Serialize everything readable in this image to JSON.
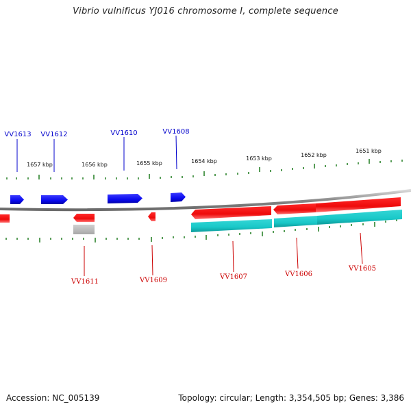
{
  "title": "Vibrio vulnificus YJ016 chromosome I, complete sequence",
  "footer": {
    "accession": "Accession: NC_005139",
    "stats": "Topology: circular; Length: 3,354,505 bp; Genes: 3,386"
  },
  "colors": {
    "forward_gene": "#0a0aee",
    "reverse_gene": "#ee0a0a",
    "cds_feature": "#19c8c8",
    "pseudo_feature": "#bdbdbd",
    "backbone": "#8a8a8a",
    "tick": "#1e7a1e",
    "top_label": "#0000cc",
    "bottom_label": "#cc0000"
  },
  "scale_labels": [
    "1657 kbp",
    "1656 kbp",
    "1655 kbp",
    "1654 kbp",
    "1653 kbp",
    "1652 kbp",
    "1651 kbp"
  ],
  "genes_top": [
    {
      "label": "VV1613",
      "strand": "+"
    },
    {
      "label": "VV1612",
      "strand": "+"
    },
    {
      "label": "VV1610",
      "strand": "+"
    },
    {
      "label": "VV1608",
      "strand": "+"
    }
  ],
  "genes_bottom": [
    {
      "label": "VV1611",
      "strand": "-"
    },
    {
      "label": "VV1609",
      "strand": "-"
    },
    {
      "label": "VV1607",
      "strand": "-"
    },
    {
      "label": "VV1606",
      "strand": "-"
    },
    {
      "label": "VV1605",
      "strand": "-"
    }
  ]
}
